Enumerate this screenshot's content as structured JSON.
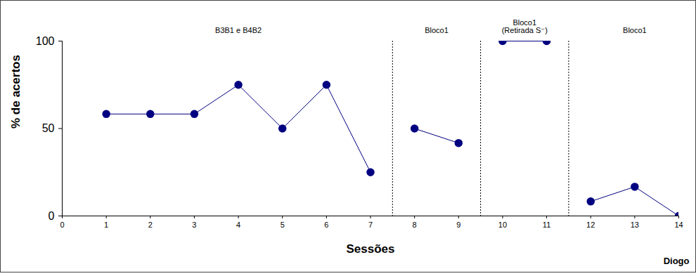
{
  "chart_data": {
    "type": "line",
    "x_label": "Sessões",
    "y_label": "% de acertos",
    "annotation": "Diogo",
    "color": "#000080",
    "marker": "circle",
    "xlim": [
      0,
      14
    ],
    "xticks": [
      0,
      1,
      2,
      3,
      4,
      5,
      6,
      7,
      8,
      9,
      10,
      11,
      12,
      13,
      14
    ],
    "ylim": [
      0,
      100
    ],
    "yticks": [
      0,
      50,
      100
    ],
    "dividers": [
      7.5,
      9.5,
      11.5
    ],
    "phases": [
      {
        "label": [
          "B3B1 e B4B2"
        ],
        "x": [
          1,
          2,
          3,
          4,
          5,
          6,
          7
        ],
        "values": [
          58.3,
          58.3,
          58.3,
          75,
          50,
          75,
          25
        ]
      },
      {
        "label": [
          "Bloco1"
        ],
        "x": [
          8,
          9
        ],
        "values": [
          50,
          41.7
        ]
      },
      {
        "label": [
          "Bloco1",
          "(Retirada S⁻)"
        ],
        "x": [
          10,
          11
        ],
        "values": [
          100,
          100
        ]
      },
      {
        "label": [
          "Bloco1"
        ],
        "x": [
          12,
          13,
          14
        ],
        "values": [
          8.3,
          16.7,
          0
        ]
      }
    ]
  }
}
